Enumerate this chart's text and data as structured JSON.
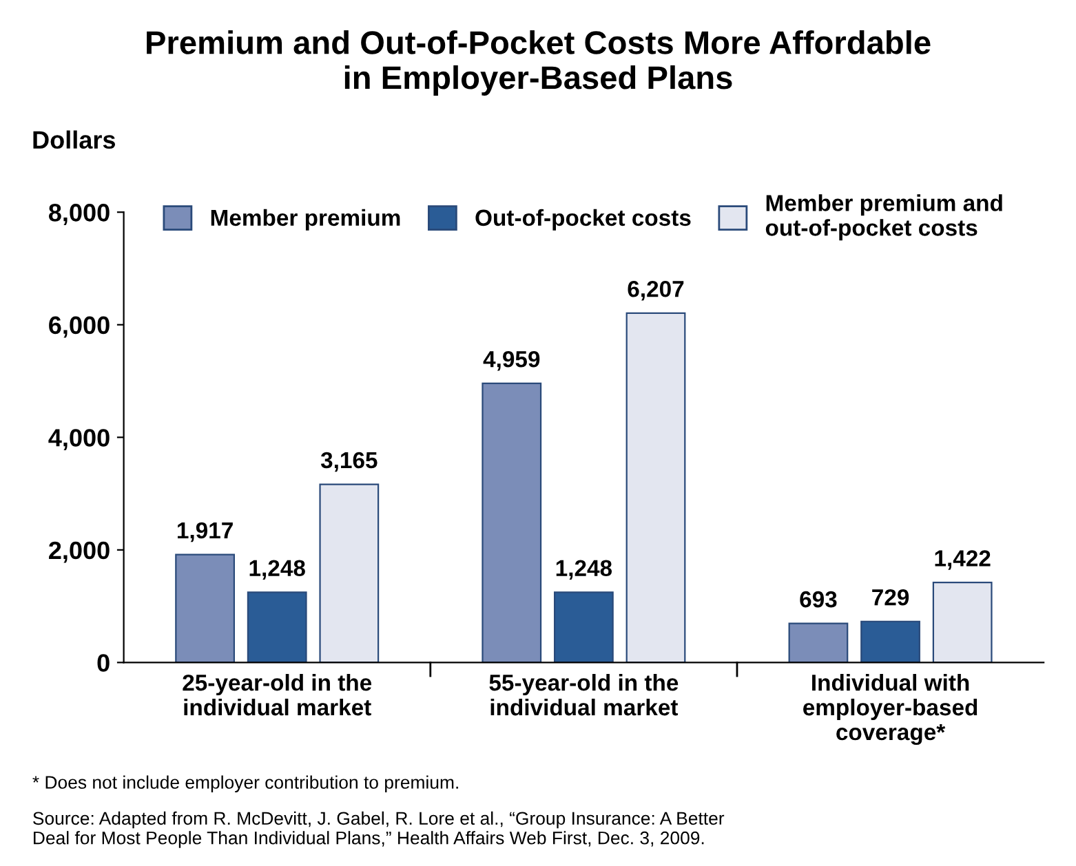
{
  "chart_data": {
    "type": "bar",
    "title": "Premium and Out-of-Pocket Costs More Affordable\nin Employer-Based Plans",
    "ylabel": "Dollars",
    "categories": [
      "25-year-old in the\nindividual market",
      "55-year-old in the\nindividual market",
      "Individual with\nemployer-based\ncoverage*"
    ],
    "series": [
      {
        "name": "Member premium",
        "color": "#7b8db8",
        "values": [
          1917,
          4959,
          693
        ]
      },
      {
        "name": "Out-of-pocket costs",
        "color": "#2a5c96",
        "values": [
          1248,
          1248,
          729
        ]
      },
      {
        "name": "Member premium and\nout-of-pocket costs",
        "color": "#e3e6f0",
        "values": [
          3165,
          6207,
          1422
        ]
      }
    ],
    "ylim": [
      0,
      8000
    ],
    "yticks": [
      {
        "value": 0,
        "label": "0"
      },
      {
        "value": 2000,
        "label": "2,000"
      },
      {
        "value": 4000,
        "label": "4,000"
      },
      {
        "value": 6000,
        "label": "6,000"
      },
      {
        "value": 8000,
        "label": "8,000"
      }
    ],
    "value_labels": [
      [
        "1,917",
        "4,959",
        "693"
      ],
      [
        "1,248",
        "1,248",
        "729"
      ],
      [
        "3,165",
        "6,207",
        "1,422"
      ]
    ],
    "legend": "top",
    "grid": false,
    "annotations": [
      "* Does not include employer contribution to premium.",
      "Source: Adapted from R. McDevitt, J. Gabel, R. Lore et al., “Group Insurance: A Better\nDeal for Most People Than Individual Plans,” Health Affairs Web First, Dec. 3, 2009."
    ]
  }
}
